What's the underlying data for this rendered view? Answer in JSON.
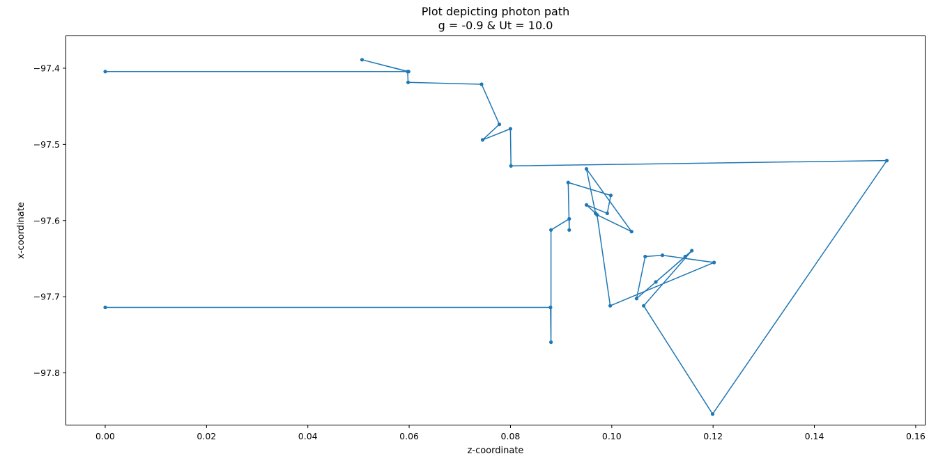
{
  "chart_data": {
    "type": "line",
    "title": "Plot depicting photon path",
    "subtitle": "g = -0.9 & Ut = 10.0",
    "xlabel": "z-coordinate",
    "ylabel": "x-coordinate",
    "xlim": [
      -0.0077,
      0.1618
    ],
    "ylim": [
      -97.868,
      -97.358
    ],
    "xticks": [
      0.0,
      0.02,
      0.04,
      0.06,
      0.08,
      0.1,
      0.12,
      0.14,
      0.16
    ],
    "xtick_labels": [
      "0.00",
      "0.02",
      "0.04",
      "0.06",
      "0.08",
      "0.10",
      "0.12",
      "0.14",
      "0.16"
    ],
    "yticks": [
      -97.4,
      -97.5,
      -97.6,
      -97.7,
      -97.8
    ],
    "ytick_labels": [
      "−97.4",
      "−97.5",
      "−97.6",
      "−97.7",
      "−97.8"
    ],
    "color": "#1f77b4",
    "grid": false,
    "marker": "dot",
    "series": [
      {
        "x": [
          0.0,
          0.0599,
          0.0507,
          0.0597,
          0.0598,
          0.0743,
          0.0778,
          0.0745,
          0.08,
          0.0801,
          0.1543,
          0.1199,
          0.1063,
          0.1158,
          0.1087,
          0.1145,
          0.1049,
          0.1066,
          0.11,
          0.1202,
          0.0997,
          0.0971,
          0.1039,
          0.095,
          0.0968,
          0.095,
          0.0991,
          0.0998,
          0.0914,
          0.0916,
          0.0916,
          0.088,
          0.088,
          0.0879,
          0.0
        ],
        "y": [
          -97.4044,
          -97.4044,
          -97.3889,
          -97.4044,
          -97.4186,
          -97.4211,
          -97.4737,
          -97.4941,
          -97.4796,
          -97.5283,
          -97.5212,
          -97.854,
          -97.7119,
          -97.6395,
          -97.6806,
          -97.6473,
          -97.7024,
          -97.6473,
          -97.6455,
          -97.655,
          -97.7119,
          -97.5925,
          -97.6145,
          -97.5322,
          -97.5905,
          -97.5795,
          -97.5905,
          -97.5669,
          -97.55,
          -97.6124,
          -97.5977,
          -97.6124,
          -97.7597,
          -97.714,
          -97.714
        ]
      }
    ]
  }
}
